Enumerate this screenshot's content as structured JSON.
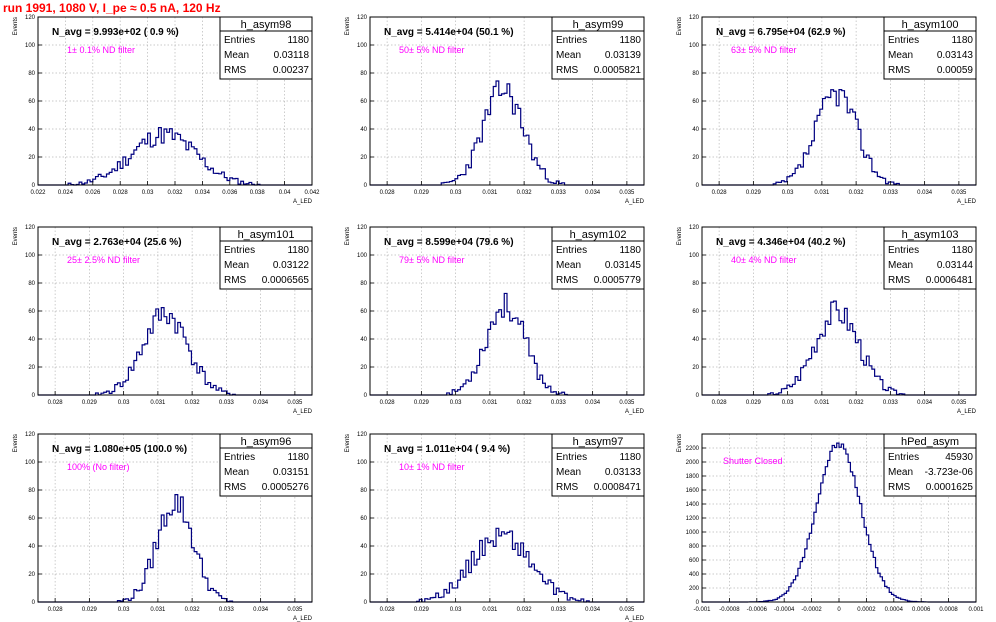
{
  "page_title": "run 1991,  1080 V, I_pe ≈ 0.5 nA, 120 Hz",
  "colors": {
    "title": "#ff0000",
    "histogram": "#000080",
    "annotation": "#ff00ff",
    "grid": "#b8b8b8"
  },
  "chart_data": [
    {
      "type": "histogram",
      "name": "h_asym98",
      "title": "N_avg = 9.993e+02 ( 0.9 %)",
      "annotation": "1± 0.1% ND filter",
      "xlabel": "A_LED",
      "ylabel": "Events",
      "stats": [
        [
          "Entries",
          "1180"
        ],
        [
          "Mean",
          "0.03118"
        ],
        [
          "RMS",
          "0.00237"
        ]
      ],
      "xlim": [
        0.022,
        0.042
      ],
      "ylim": [
        0,
        120
      ],
      "xticks": [
        "0.022",
        "0.024",
        "0.026",
        "0.028",
        "0.03",
        "0.032",
        "0.034",
        "0.036",
        "0.038",
        "0.04",
        "0.042"
      ],
      "yticks": [
        "0",
        "20",
        "40",
        "60",
        "80",
        "100",
        "120"
      ],
      "mean": 0.03118,
      "sigma": 0.00237,
      "peak": 36,
      "bins": 100,
      "seed": 11
    },
    {
      "type": "histogram",
      "name": "h_asym99",
      "title": "N_avg = 5.414e+04 (50.1 %)",
      "annotation": "50± 5% ND filter",
      "xlabel": "A_LED",
      "ylabel": "Events",
      "stats": [
        [
          "Entries",
          "1180"
        ],
        [
          "Mean",
          "0.03139"
        ],
        [
          "RMS",
          "0.0005821"
        ]
      ],
      "xlim": [
        0.0275,
        0.0355
      ],
      "ylim": [
        0,
        120
      ],
      "xticks": [
        "0.028",
        "0.029",
        "0.03",
        "0.031",
        "0.032",
        "0.033",
        "0.034",
        "0.035"
      ],
      "yticks": [
        "0",
        "20",
        "40",
        "60",
        "80",
        "100",
        "120"
      ],
      "mean": 0.03139,
      "sigma": 0.0005821,
      "peak": 68,
      "bins": 100,
      "seed": 23
    },
    {
      "type": "histogram",
      "name": "h_asym100",
      "title": "N_avg = 6.795e+04 (62.9 %)",
      "annotation": "63± 5% ND filter",
      "xlabel": "A_LED",
      "ylabel": "Events",
      "stats": [
        [
          "Entries",
          "1180"
        ],
        [
          "Mean",
          "0.03143"
        ],
        [
          "RMS",
          "0.00059"
        ]
      ],
      "xlim": [
        0.0275,
        0.0355
      ],
      "ylim": [
        0,
        120
      ],
      "xticks": [
        "0.028",
        "0.029",
        "0.03",
        "0.031",
        "0.032",
        "0.033",
        "0.034",
        "0.035"
      ],
      "yticks": [
        "0",
        "20",
        "40",
        "60",
        "80",
        "100",
        "120"
      ],
      "mean": 0.03143,
      "sigma": 0.00059,
      "peak": 66,
      "bins": 100,
      "seed": 37
    },
    {
      "type": "histogram",
      "name": "h_asym101",
      "title": "N_avg = 2.763e+04 (25.6 %)",
      "annotation": "25± 2.5% ND filter",
      "xlabel": "A_LED",
      "ylabel": "Events",
      "stats": [
        [
          "Entries",
          "1180"
        ],
        [
          "Mean",
          "0.03122"
        ],
        [
          "RMS",
          "0.0006565"
        ]
      ],
      "xlim": [
        0.0275,
        0.0355
      ],
      "ylim": [
        0,
        120
      ],
      "xticks": [
        "0.028",
        "0.029",
        "0.03",
        "0.031",
        "0.032",
        "0.033",
        "0.034",
        "0.035"
      ],
      "yticks": [
        "0",
        "20",
        "40",
        "60",
        "80",
        "100",
        "120"
      ],
      "mean": 0.03122,
      "sigma": 0.0006565,
      "peak": 58,
      "bins": 100,
      "seed": 41
    },
    {
      "type": "histogram",
      "name": "h_asym102",
      "title": "N_avg = 8.599e+04 (79.6 %)",
      "annotation": "79± 5% ND filter",
      "xlabel": "A_LED",
      "ylabel": "Events",
      "stats": [
        [
          "Entries",
          "1180"
        ],
        [
          "Mean",
          "0.03145"
        ],
        [
          "RMS",
          "0.0005779"
        ]
      ],
      "xlim": [
        0.0275,
        0.0355
      ],
      "ylim": [
        0,
        120
      ],
      "xticks": [
        "0.028",
        "0.029",
        "0.03",
        "0.031",
        "0.032",
        "0.033",
        "0.034",
        "0.035"
      ],
      "yticks": [
        "0",
        "20",
        "40",
        "60",
        "80",
        "100",
        "120"
      ],
      "mean": 0.03145,
      "sigma": 0.0005779,
      "peak": 64,
      "bins": 100,
      "seed": 53
    },
    {
      "type": "histogram",
      "name": "h_asym103",
      "title": "N_avg = 4.346e+04 (40.2 %)",
      "annotation": "40± 4% ND filter",
      "xlabel": "A_LED",
      "ylabel": "Events",
      "stats": [
        [
          "Entries",
          "1180"
        ],
        [
          "Mean",
          "0.03144"
        ],
        [
          "RMS",
          "0.0006481"
        ]
      ],
      "xlim": [
        0.0275,
        0.0355
      ],
      "ylim": [
        0,
        120
      ],
      "xticks": [
        "0.028",
        "0.029",
        "0.03",
        "0.031",
        "0.032",
        "0.033",
        "0.034",
        "0.035"
      ],
      "yticks": [
        "0",
        "20",
        "40",
        "60",
        "80",
        "100",
        "120"
      ],
      "mean": 0.03144,
      "sigma": 0.0006481,
      "peak": 60,
      "bins": 100,
      "seed": 67
    },
    {
      "type": "histogram",
      "name": "h_asym96",
      "title": "N_avg = 1.080e+05 (100.0 %)",
      "annotation": "100% (No filter)",
      "xlabel": "A_LED",
      "ylabel": "Events",
      "stats": [
        [
          "Entries",
          "1180"
        ],
        [
          "Mean",
          "0.03151"
        ],
        [
          "RMS",
          "0.0005276"
        ]
      ],
      "xlim": [
        0.0275,
        0.0355
      ],
      "ylim": [
        0,
        120
      ],
      "xticks": [
        "0.028",
        "0.029",
        "0.03",
        "0.031",
        "0.032",
        "0.033",
        "0.034",
        "0.035"
      ],
      "yticks": [
        "0",
        "20",
        "40",
        "60",
        "80",
        "100",
        "120"
      ],
      "mean": 0.03151,
      "sigma": 0.0005276,
      "peak": 72,
      "bins": 100,
      "seed": 79
    },
    {
      "type": "histogram",
      "name": "h_asym97",
      "title": "N_avg = 1.011e+04 ( 9.4 %)",
      "annotation": "10± 1% ND filter",
      "xlabel": "A_LED",
      "ylabel": "Events",
      "stats": [
        [
          "Entries",
          "1180"
        ],
        [
          "Mean",
          "0.03133"
        ],
        [
          "RMS",
          "0.0008471"
        ]
      ],
      "xlim": [
        0.0275,
        0.0355
      ],
      "ylim": [
        0,
        120
      ],
      "xticks": [
        "0.028",
        "0.029",
        "0.03",
        "0.031",
        "0.032",
        "0.033",
        "0.034",
        "0.035"
      ],
      "yticks": [
        "0",
        "20",
        "40",
        "60",
        "80",
        "100",
        "120"
      ],
      "mean": 0.03133,
      "sigma": 0.0008471,
      "peak": 48,
      "bins": 100,
      "seed": 89
    },
    {
      "type": "histogram",
      "name": "hPed_asym",
      "title": "",
      "annotation": "Shutter Closed",
      "xlabel": "",
      "ylabel": "Events",
      "stats": [
        [
          "Entries",
          "45930"
        ],
        [
          "Mean",
          "-3.723e-06"
        ],
        [
          "RMS",
          "0.0001625"
        ]
      ],
      "xlim": [
        -0.001,
        0.001
      ],
      "ylim": [
        0,
        2400
      ],
      "xticks": [
        "-0.001",
        "-0.0008",
        "-0.0006",
        "-0.0004",
        "-0.0002",
        "0",
        "0.0002",
        "0.0004",
        "0.0006",
        "0.0008",
        "0.001"
      ],
      "yticks": [
        "0",
        "200",
        "400",
        "600",
        "800",
        "1000",
        "1200",
        "1400",
        "1600",
        "1800",
        "2000",
        "2200"
      ],
      "mean": -3.723e-06,
      "sigma": 0.0001625,
      "peak": 2250,
      "bins": 120,
      "seed": 97
    }
  ]
}
